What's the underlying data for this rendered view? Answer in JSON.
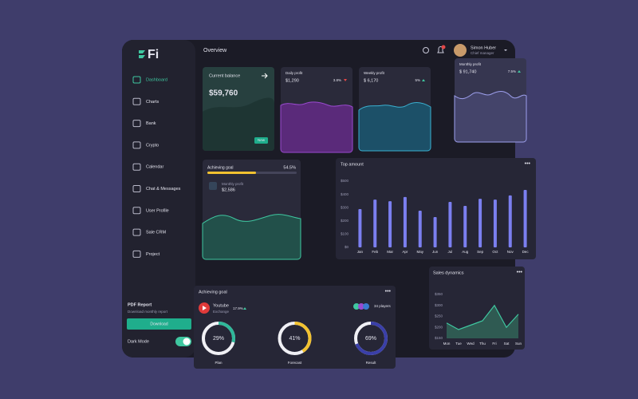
{
  "brand": "Fi",
  "header": {
    "title": "Overview",
    "user_name": "Simon Huber",
    "user_role": "Chief manager"
  },
  "nav": [
    "Dashboard",
    "Charts",
    "Bank",
    "Crypto",
    "Calendar",
    "Chat & Messages",
    "User Profile",
    "Sale CRM",
    "Project"
  ],
  "promo": {
    "title": "PDF Report",
    "text": "Download monthly report",
    "button": "Download"
  },
  "dark_mode": "Dark Mode",
  "balance": {
    "label": "Current balance",
    "value": "$59,760",
    "badge": "New"
  },
  "daily_profit": {
    "label": "Daily profit",
    "value": "$1,290",
    "change": "3.8%"
  },
  "weekly_profit": {
    "label": "Weekly profit",
    "value": "$ 6,170",
    "change": "5%"
  },
  "monthly_profit": {
    "label": "Monthly profit",
    "value": "$ 91,740",
    "change": "7.5%"
  },
  "goal": {
    "title": "Achieving goal",
    "progress": 54.5,
    "progress_label": "54.5%",
    "label": "Monthly profit",
    "value": "$2,586"
  },
  "goal_card": {
    "title": "Achieving goal",
    "item": "Youtube",
    "item_sub": "Exchange",
    "change": "17.9%",
    "players": "34 players",
    "gauges": [
      {
        "label": "Plan",
        "value": 29,
        "value_label": "29%",
        "color": "#2fb89a"
      },
      {
        "label": "Forecast",
        "value": 41,
        "value_label": "41%",
        "color": "#f2c230"
      },
      {
        "label": "Result",
        "value": 69,
        "value_label": "69%",
        "color": "#3a3fa8"
      }
    ]
  },
  "chart_data": [
    {
      "type": "bar",
      "title": "Top amount",
      "categories": [
        "Jan",
        "Feb",
        "Mar",
        "Apr",
        "May",
        "Jun",
        "Jul",
        "Aug",
        "Sep",
        "Oct",
        "Nov",
        "Dec"
      ],
      "values": [
        289,
        361,
        349,
        380,
        277,
        229,
        343,
        313,
        367,
        361,
        392,
        434
      ],
      "color": "#7b7ff0",
      "ylim": [
        0,
        500
      ],
      "yticks": [
        {
          "value": 0,
          "label": "$0"
        },
        {
          "value": 100,
          "label": "$100"
        },
        {
          "value": 200,
          "label": "$200"
        },
        {
          "value": 300,
          "label": "$300"
        },
        {
          "value": 400,
          "label": "$400"
        },
        {
          "value": 500,
          "label": "$500"
        }
      ]
    },
    {
      "type": "area",
      "title": "Sales dynamics",
      "categories": [
        "Mon",
        "Tue",
        "Wed",
        "Thu",
        "Fri",
        "Sat",
        "Sun"
      ],
      "values": [
        220,
        190,
        210,
        230,
        300,
        200,
        260
      ],
      "color": "#3fc7a0",
      "ylim": [
        150,
        350
      ],
      "yticks": [
        {
          "value": 150,
          "label": "$150"
        },
        {
          "value": 200,
          "label": "$200"
        },
        {
          "value": 250,
          "label": "$250"
        },
        {
          "value": 300,
          "label": "$300"
        },
        {
          "value": 350,
          "label": "$350"
        }
      ]
    }
  ]
}
